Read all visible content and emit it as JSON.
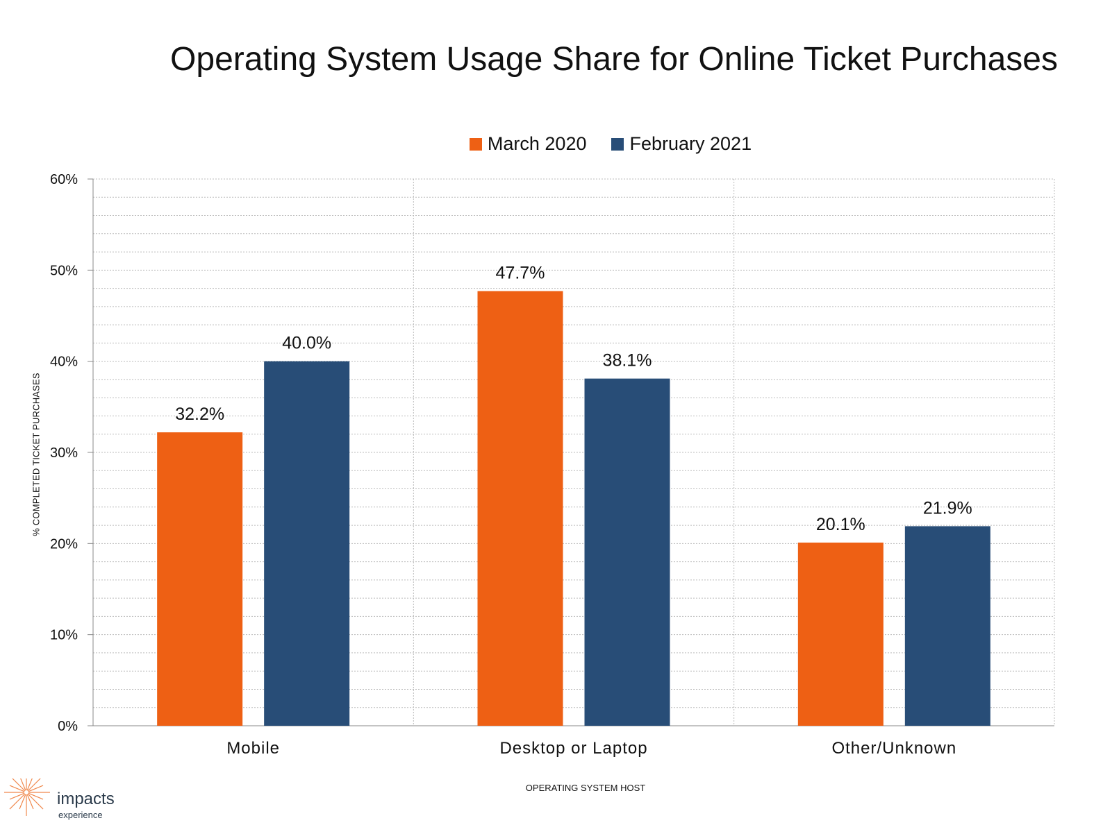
{
  "colors": {
    "march": "#EE6014",
    "feb": "#284D77",
    "grid": "#bbbbbb",
    "axis": "#888888"
  },
  "logo": {
    "name": "impacts",
    "sub": "experience",
    "icon": "sunburst-icon",
    "color": "#F0884C"
  },
  "chart_data": {
    "type": "bar",
    "title": "Operating System Usage Share for Online Ticket Purchases",
    "xlabel": "OPERATING SYSTEM HOST",
    "ylabel": "% COMPLETED TICKET PURCHASES",
    "categories": [
      "Mobile",
      "Desktop or Laptop",
      "Other/Unknown"
    ],
    "series": [
      {
        "name": "March 2020",
        "values": [
          32.2,
          47.7,
          20.1
        ],
        "labels": [
          "32.2%",
          "47.7%",
          "20.1%"
        ],
        "color": "#EE6014"
      },
      {
        "name": "February 2021",
        "values": [
          40.0,
          38.1,
          21.9
        ],
        "labels": [
          "40.0%",
          "38.1%",
          "21.9%"
        ],
        "color": "#284D77"
      }
    ],
    "ylim": [
      0,
      60
    ],
    "yticks": [
      "0%",
      "10%",
      "20%",
      "30%",
      "40%",
      "50%",
      "60%"
    ],
    "grid": true,
    "legend": "top"
  }
}
